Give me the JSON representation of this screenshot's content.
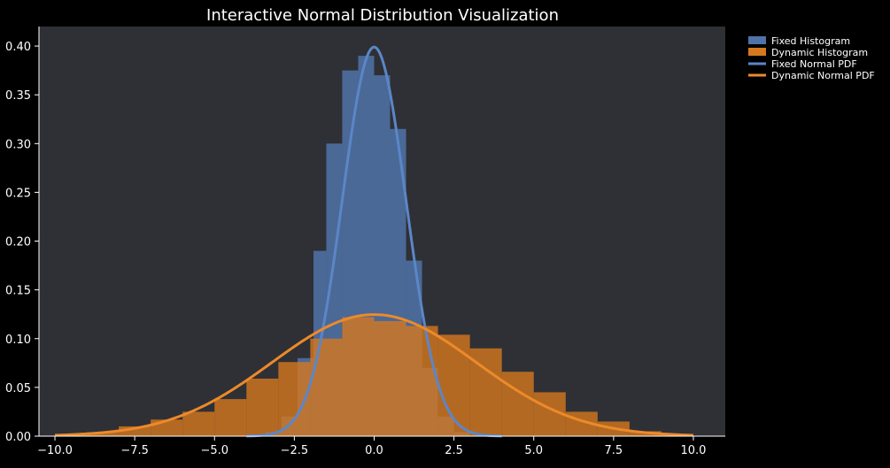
{
  "chart_data": {
    "type": "bar",
    "title": "Interactive Normal Distribution Visualization",
    "xlabel": "",
    "ylabel": "",
    "xlim": [
      -10.5,
      11
    ],
    "ylim": [
      0,
      0.42
    ],
    "x_ticks": [
      -10.0,
      -7.5,
      -5.0,
      -2.5,
      0.0,
      2.5,
      5.0,
      7.5,
      10.0
    ],
    "x_tick_labels": [
      "−10.0",
      "−7.5",
      "−5.0",
      "−2.5",
      "0.0",
      "2.5",
      "5.0",
      "7.5",
      "10.0"
    ],
    "y_ticks": [
      0.0,
      0.05,
      0.1,
      0.15,
      0.2,
      0.25,
      0.3,
      0.35,
      0.4
    ],
    "y_tick_labels": [
      "0.00",
      "0.05",
      "0.10",
      "0.15",
      "0.20",
      "0.25",
      "0.30",
      "0.35",
      "0.40"
    ],
    "grid": false,
    "legend_position": "outside-top-right",
    "colors": {
      "background": "#000000",
      "plot_background": "#2f3035",
      "text": "#ffffff",
      "fixed": "#4f73a8",
      "fixed_line": "#5b86c8",
      "dynamic": "#d6781e",
      "dynamic_line": "#ec8a2a"
    },
    "series": [
      {
        "name": "Fixed Histogram",
        "kind": "histogram",
        "color": "#4f73a8",
        "bin_edges": [
          -3.4,
          -2.9,
          -2.4,
          -1.9,
          -1.5,
          -1.0,
          -0.5,
          0.0,
          0.5,
          1.0,
          1.5,
          2.0,
          2.5,
          3.0
        ],
        "values": [
          0.004,
          0.02,
          0.08,
          0.19,
          0.3,
          0.375,
          0.39,
          0.37,
          0.315,
          0.18,
          0.07,
          0.02,
          0.004
        ]
      },
      {
        "name": "Dynamic Histogram",
        "kind": "histogram",
        "color": "#d6781e",
        "bin_edges": [
          -10.0,
          -9.0,
          -8.0,
          -7.0,
          -6.0,
          -5.0,
          -4.0,
          -3.0,
          -2.0,
          -1.0,
          0.0,
          1.0,
          2.0,
          3.0,
          4.0,
          5.0,
          6.0,
          7.0,
          8.0,
          9.0,
          10.0
        ],
        "values": [
          0.001,
          0.004,
          0.01,
          0.017,
          0.025,
          0.038,
          0.059,
          0.076,
          0.1,
          0.122,
          0.118,
          0.113,
          0.104,
          0.09,
          0.066,
          0.045,
          0.025,
          0.015,
          0.005,
          0.002
        ]
      },
      {
        "name": "Fixed Normal PDF",
        "kind": "pdf",
        "color": "#5b86c8",
        "mean": 0,
        "std": 1,
        "x_range": [
          -4,
          4
        ]
      },
      {
        "name": "Dynamic Normal PDF",
        "kind": "pdf",
        "color": "#ec8a2a",
        "mean": 0,
        "std": 3.2,
        "x_range": [
          -10,
          10
        ]
      }
    ]
  }
}
